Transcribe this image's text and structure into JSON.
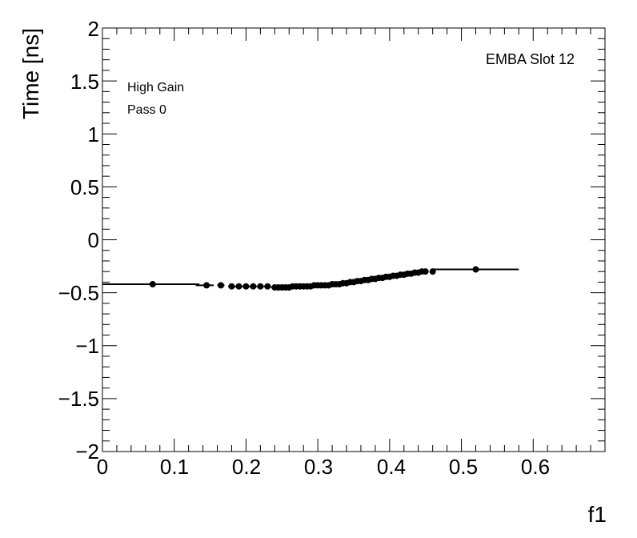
{
  "chart_data": {
    "type": "scatter",
    "title": "",
    "xlabel": "f1",
    "ylabel": "Time [ns]",
    "xlim": [
      0,
      0.7
    ],
    "ylim": [
      -2,
      2
    ],
    "x_ticks": [
      "0",
      "0.1",
      "0.2",
      "0.3",
      "0.4",
      "0.5",
      "0.6"
    ],
    "y_ticks": [
      "−2",
      "−1.5",
      "−1",
      "−0.5",
      "0",
      "0.5",
      "1",
      "1.5",
      "2"
    ],
    "annotations": {
      "gain": "High Gain",
      "pass": "Pass 0",
      "module": "EMBA Slot 12"
    },
    "grid": false,
    "series": [
      {
        "x": [
          0.07,
          0.145,
          0.165,
          0.18,
          0.19,
          0.2,
          0.21,
          0.22,
          0.23,
          0.24,
          0.245,
          0.25,
          0.255,
          0.26,
          0.265,
          0.27,
          0.275,
          0.28,
          0.285,
          0.29,
          0.295,
          0.3,
          0.305,
          0.31,
          0.315,
          0.32,
          0.325,
          0.33,
          0.335,
          0.34,
          0.345,
          0.35,
          0.355,
          0.36,
          0.365,
          0.37,
          0.375,
          0.38,
          0.385,
          0.39,
          0.395,
          0.4,
          0.405,
          0.41,
          0.415,
          0.42,
          0.425,
          0.43,
          0.435,
          0.44,
          0.445,
          0.45,
          0.46,
          0.52
        ],
        "y": [
          -0.42,
          -0.43,
          -0.43,
          -0.44,
          -0.44,
          -0.44,
          -0.44,
          -0.44,
          -0.44,
          -0.45,
          -0.45,
          -0.45,
          -0.45,
          -0.45,
          -0.44,
          -0.44,
          -0.44,
          -0.44,
          -0.44,
          -0.44,
          -0.43,
          -0.43,
          -0.43,
          -0.43,
          -0.43,
          -0.42,
          -0.42,
          -0.42,
          -0.41,
          -0.41,
          -0.4,
          -0.4,
          -0.39,
          -0.39,
          -0.38,
          -0.38,
          -0.37,
          -0.37,
          -0.36,
          -0.36,
          -0.35,
          -0.35,
          -0.34,
          -0.34,
          -0.33,
          -0.33,
          -0.32,
          -0.32,
          -0.31,
          -0.31,
          -0.3,
          -0.3,
          -0.3,
          -0.28
        ],
        "xerr_lo": [
          0.07,
          0.015,
          0.005,
          0.005,
          0.005,
          0.005,
          0.005,
          0.005,
          0.005,
          0.005,
          0.003,
          0.003,
          0.003,
          0.003,
          0.003,
          0.003,
          0.003,
          0.003,
          0.003,
          0.003,
          0.003,
          0.003,
          0.003,
          0.003,
          0.003,
          0.003,
          0.003,
          0.003,
          0.003,
          0.003,
          0.003,
          0.003,
          0.003,
          0.003,
          0.003,
          0.003,
          0.003,
          0.003,
          0.003,
          0.003,
          0.003,
          0.003,
          0.003,
          0.003,
          0.003,
          0.003,
          0.003,
          0.003,
          0.003,
          0.003,
          0.003,
          0.003,
          0.003,
          0.06
        ],
        "xerr_hi": [
          0.065,
          0.01,
          0.005,
          0.005,
          0.005,
          0.005,
          0.005,
          0.005,
          0.005,
          0.005,
          0.003,
          0.003,
          0.003,
          0.003,
          0.003,
          0.003,
          0.003,
          0.003,
          0.003,
          0.003,
          0.003,
          0.003,
          0.003,
          0.003,
          0.003,
          0.003,
          0.003,
          0.003,
          0.003,
          0.003,
          0.003,
          0.003,
          0.003,
          0.003,
          0.003,
          0.003,
          0.003,
          0.003,
          0.003,
          0.003,
          0.003,
          0.003,
          0.003,
          0.003,
          0.003,
          0.003,
          0.003,
          0.003,
          0.003,
          0.003,
          0.003,
          0.003,
          0.003,
          0.06
        ]
      }
    ]
  }
}
